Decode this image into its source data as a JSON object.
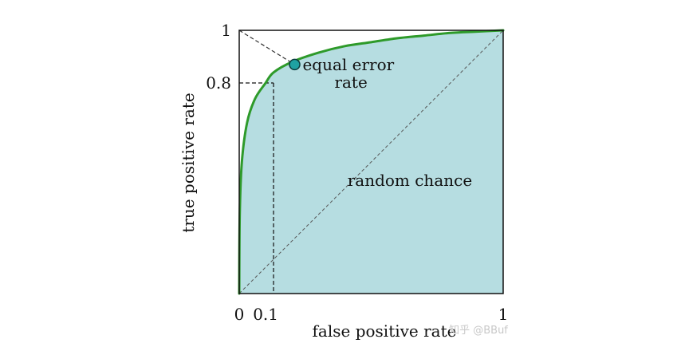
{
  "chart_data": {
    "type": "line",
    "xlabel": "false positive rate",
    "ylabel": "true positive rate",
    "xlim": [
      0,
      1
    ],
    "ylim": [
      0,
      1
    ],
    "grid": false,
    "legend": "none",
    "x_ticks": [
      {
        "value": 0,
        "label": "0"
      },
      {
        "value": 0.1,
        "label": "0.1"
      },
      {
        "value": 1,
        "label": "1"
      }
    ],
    "y_ticks": [
      {
        "value": 0.8,
        "label": "0.8"
      },
      {
        "value": 1,
        "label": "1"
      }
    ],
    "series": [
      {
        "kind": "roc-curve",
        "color": "#2e9a2a",
        "fill_color": "#b6dde1",
        "x": [
          0,
          0.002,
          0.01,
          0.03,
          0.06,
          0.1,
          0.13,
          0.2,
          0.3,
          0.4,
          0.5,
          0.6,
          0.7,
          0.8,
          0.9,
          1.0
        ],
        "y": [
          0,
          0.3,
          0.5,
          0.65,
          0.74,
          0.8,
          0.84,
          0.88,
          0.915,
          0.94,
          0.955,
          0.97,
          0.98,
          0.99,
          0.995,
          1.0
        ]
      },
      {
        "kind": "random-chance-diagonal",
        "color": "#555555",
        "x": [
          0,
          1
        ],
        "y": [
          0,
          1
        ]
      },
      {
        "kind": "equal-error-diagonal",
        "color": "#333333",
        "x": [
          0,
          0.13
        ],
        "y": [
          1,
          0.87
        ]
      }
    ],
    "guide_point": {
      "x": 0.13,
      "y": 0.8
    },
    "equal_error_point": {
      "x": 0.21,
      "y": 0.87,
      "color": "#1fa2a2"
    },
    "annotations": [
      {
        "text_lines": [
          "equal error",
          "rate"
        ],
        "x": 0.24,
        "y": 0.87
      },
      {
        "text_lines": [
          "random chance"
        ],
        "x": 0.41,
        "y": 0.43
      }
    ]
  },
  "watermark": "知乎 @BBuf"
}
